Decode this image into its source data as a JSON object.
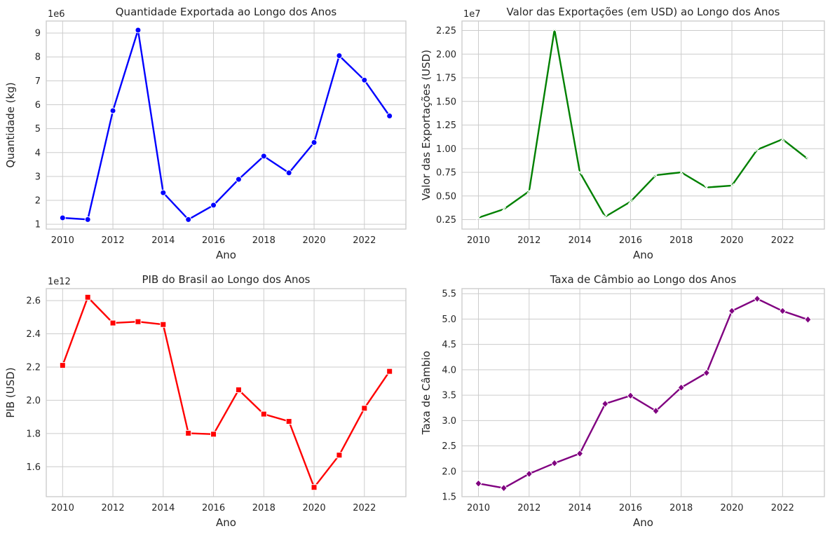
{
  "chart_data": [
    {
      "type": "line",
      "title": "Quantidade Exportada ao Longo dos Anos",
      "xlabel": "Ano",
      "ylabel": "Quantidade (kg)",
      "y_offset_label": "1e6",
      "color": "#0000ff",
      "marker": "circle",
      "x": [
        2010,
        2011,
        2012,
        2013,
        2014,
        2015,
        2016,
        2017,
        2018,
        2019,
        2020,
        2021,
        2022,
        2023
      ],
      "series": [
        {
          "values": [
            1.27,
            1.2,
            5.75,
            9.12,
            2.32,
            1.2,
            1.8,
            2.88,
            3.85,
            3.15,
            4.42,
            8.05,
            7.03,
            5.53
          ]
        }
      ],
      "xlim": [
        2009.35,
        2023.65
      ],
      "ylim": [
        0.8,
        9.5
      ],
      "xticks": [
        2010,
        2012,
        2014,
        2016,
        2018,
        2020,
        2022
      ],
      "xtick_labels": [
        "2010",
        "2012",
        "2014",
        "2016",
        "2018",
        "2020",
        "2022"
      ],
      "yticks": [
        1,
        2,
        3,
        4,
        5,
        6,
        7,
        8,
        9
      ],
      "ytick_labels": [
        "1",
        "2",
        "3",
        "4",
        "5",
        "6",
        "7",
        "8",
        "9"
      ],
      "grid": true
    },
    {
      "type": "line",
      "title": "Valor das Exportações (em USD) ao Longo dos Anos",
      "xlabel": "Ano",
      "ylabel": "Valor das Exportações (USD)",
      "y_offset_label": "1e7",
      "color": "#008000",
      "marker": "x",
      "x": [
        2010,
        2011,
        2012,
        2013,
        2014,
        2015,
        2016,
        2017,
        2018,
        2019,
        2020,
        2021,
        2022,
        2023
      ],
      "series": [
        {
          "values": [
            0.27,
            0.36,
            0.55,
            2.26,
            0.75,
            0.28,
            0.44,
            0.72,
            0.75,
            0.59,
            0.61,
            0.99,
            1.1,
            0.89
          ]
        }
      ],
      "xlim": [
        2009.35,
        2023.65
      ],
      "ylim": [
        0.15,
        2.35
      ],
      "xticks": [
        2010,
        2012,
        2014,
        2016,
        2018,
        2020,
        2022
      ],
      "xtick_labels": [
        "2010",
        "2012",
        "2014",
        "2016",
        "2018",
        "2020",
        "2022"
      ],
      "yticks": [
        0.25,
        0.5,
        0.75,
        1.0,
        1.25,
        1.5,
        1.75,
        2.0,
        2.25
      ],
      "ytick_labels": [
        "0.25",
        "0.50",
        "0.75",
        "1.00",
        "1.25",
        "1.50",
        "1.75",
        "2.00",
        "2.25"
      ],
      "grid": true
    },
    {
      "type": "line",
      "title": "PIB do Brasil ao Longo dos Anos",
      "xlabel": "Ano",
      "ylabel": "PIB (USD)",
      "y_offset_label": "1e12",
      "color": "#ff0000",
      "marker": "square",
      "x": [
        2010,
        2011,
        2012,
        2013,
        2014,
        2015,
        2016,
        2017,
        2018,
        2019,
        2020,
        2021,
        2022,
        2023
      ],
      "series": [
        {
          "values": [
            2.21,
            2.62,
            2.465,
            2.473,
            2.456,
            1.802,
            1.796,
            2.063,
            1.917,
            1.873,
            1.476,
            1.67,
            1.952,
            2.174
          ]
        }
      ],
      "xlim": [
        2009.35,
        2023.65
      ],
      "ylim": [
        1.42,
        2.672
      ],
      "xticks": [
        2010,
        2012,
        2014,
        2016,
        2018,
        2020,
        2022
      ],
      "xtick_labels": [
        "2010",
        "2012",
        "2014",
        "2016",
        "2018",
        "2020",
        "2022"
      ],
      "yticks": [
        1.6,
        1.8,
        2.0,
        2.2,
        2.4,
        2.6
      ],
      "ytick_labels": [
        "1.6",
        "1.8",
        "2.0",
        "2.2",
        "2.4",
        "2.6"
      ],
      "grid": true
    },
    {
      "type": "line",
      "title": "Taxa de Câmbio ao Longo dos Anos",
      "xlabel": "Ano",
      "ylabel": "Taxa de Câmbio",
      "y_offset_label": "",
      "color": "#800080",
      "marker": "diamond",
      "x": [
        2010,
        2011,
        2012,
        2013,
        2014,
        2015,
        2016,
        2017,
        2018,
        2019,
        2020,
        2021,
        2022,
        2023
      ],
      "series": [
        {
          "values": [
            1.76,
            1.67,
            1.95,
            2.16,
            2.35,
            3.33,
            3.49,
            3.19,
            3.65,
            3.94,
            5.16,
            5.4,
            5.16,
            4.99
          ]
        }
      ],
      "xlim": [
        2009.35,
        2023.65
      ],
      "ylim": [
        1.5,
        5.6
      ],
      "xticks": [
        2010,
        2012,
        2014,
        2016,
        2018,
        2020,
        2022
      ],
      "xtick_labels": [
        "2010",
        "2012",
        "2014",
        "2016",
        "2018",
        "2020",
        "2022"
      ],
      "yticks": [
        1.5,
        2.0,
        2.5,
        3.0,
        3.5,
        4.0,
        4.5,
        5.0,
        5.5
      ],
      "ytick_labels": [
        "1.5",
        "2.0",
        "2.5",
        "3.0",
        "3.5",
        "4.0",
        "4.5",
        "5.0",
        "5.5"
      ],
      "grid": true
    }
  ]
}
